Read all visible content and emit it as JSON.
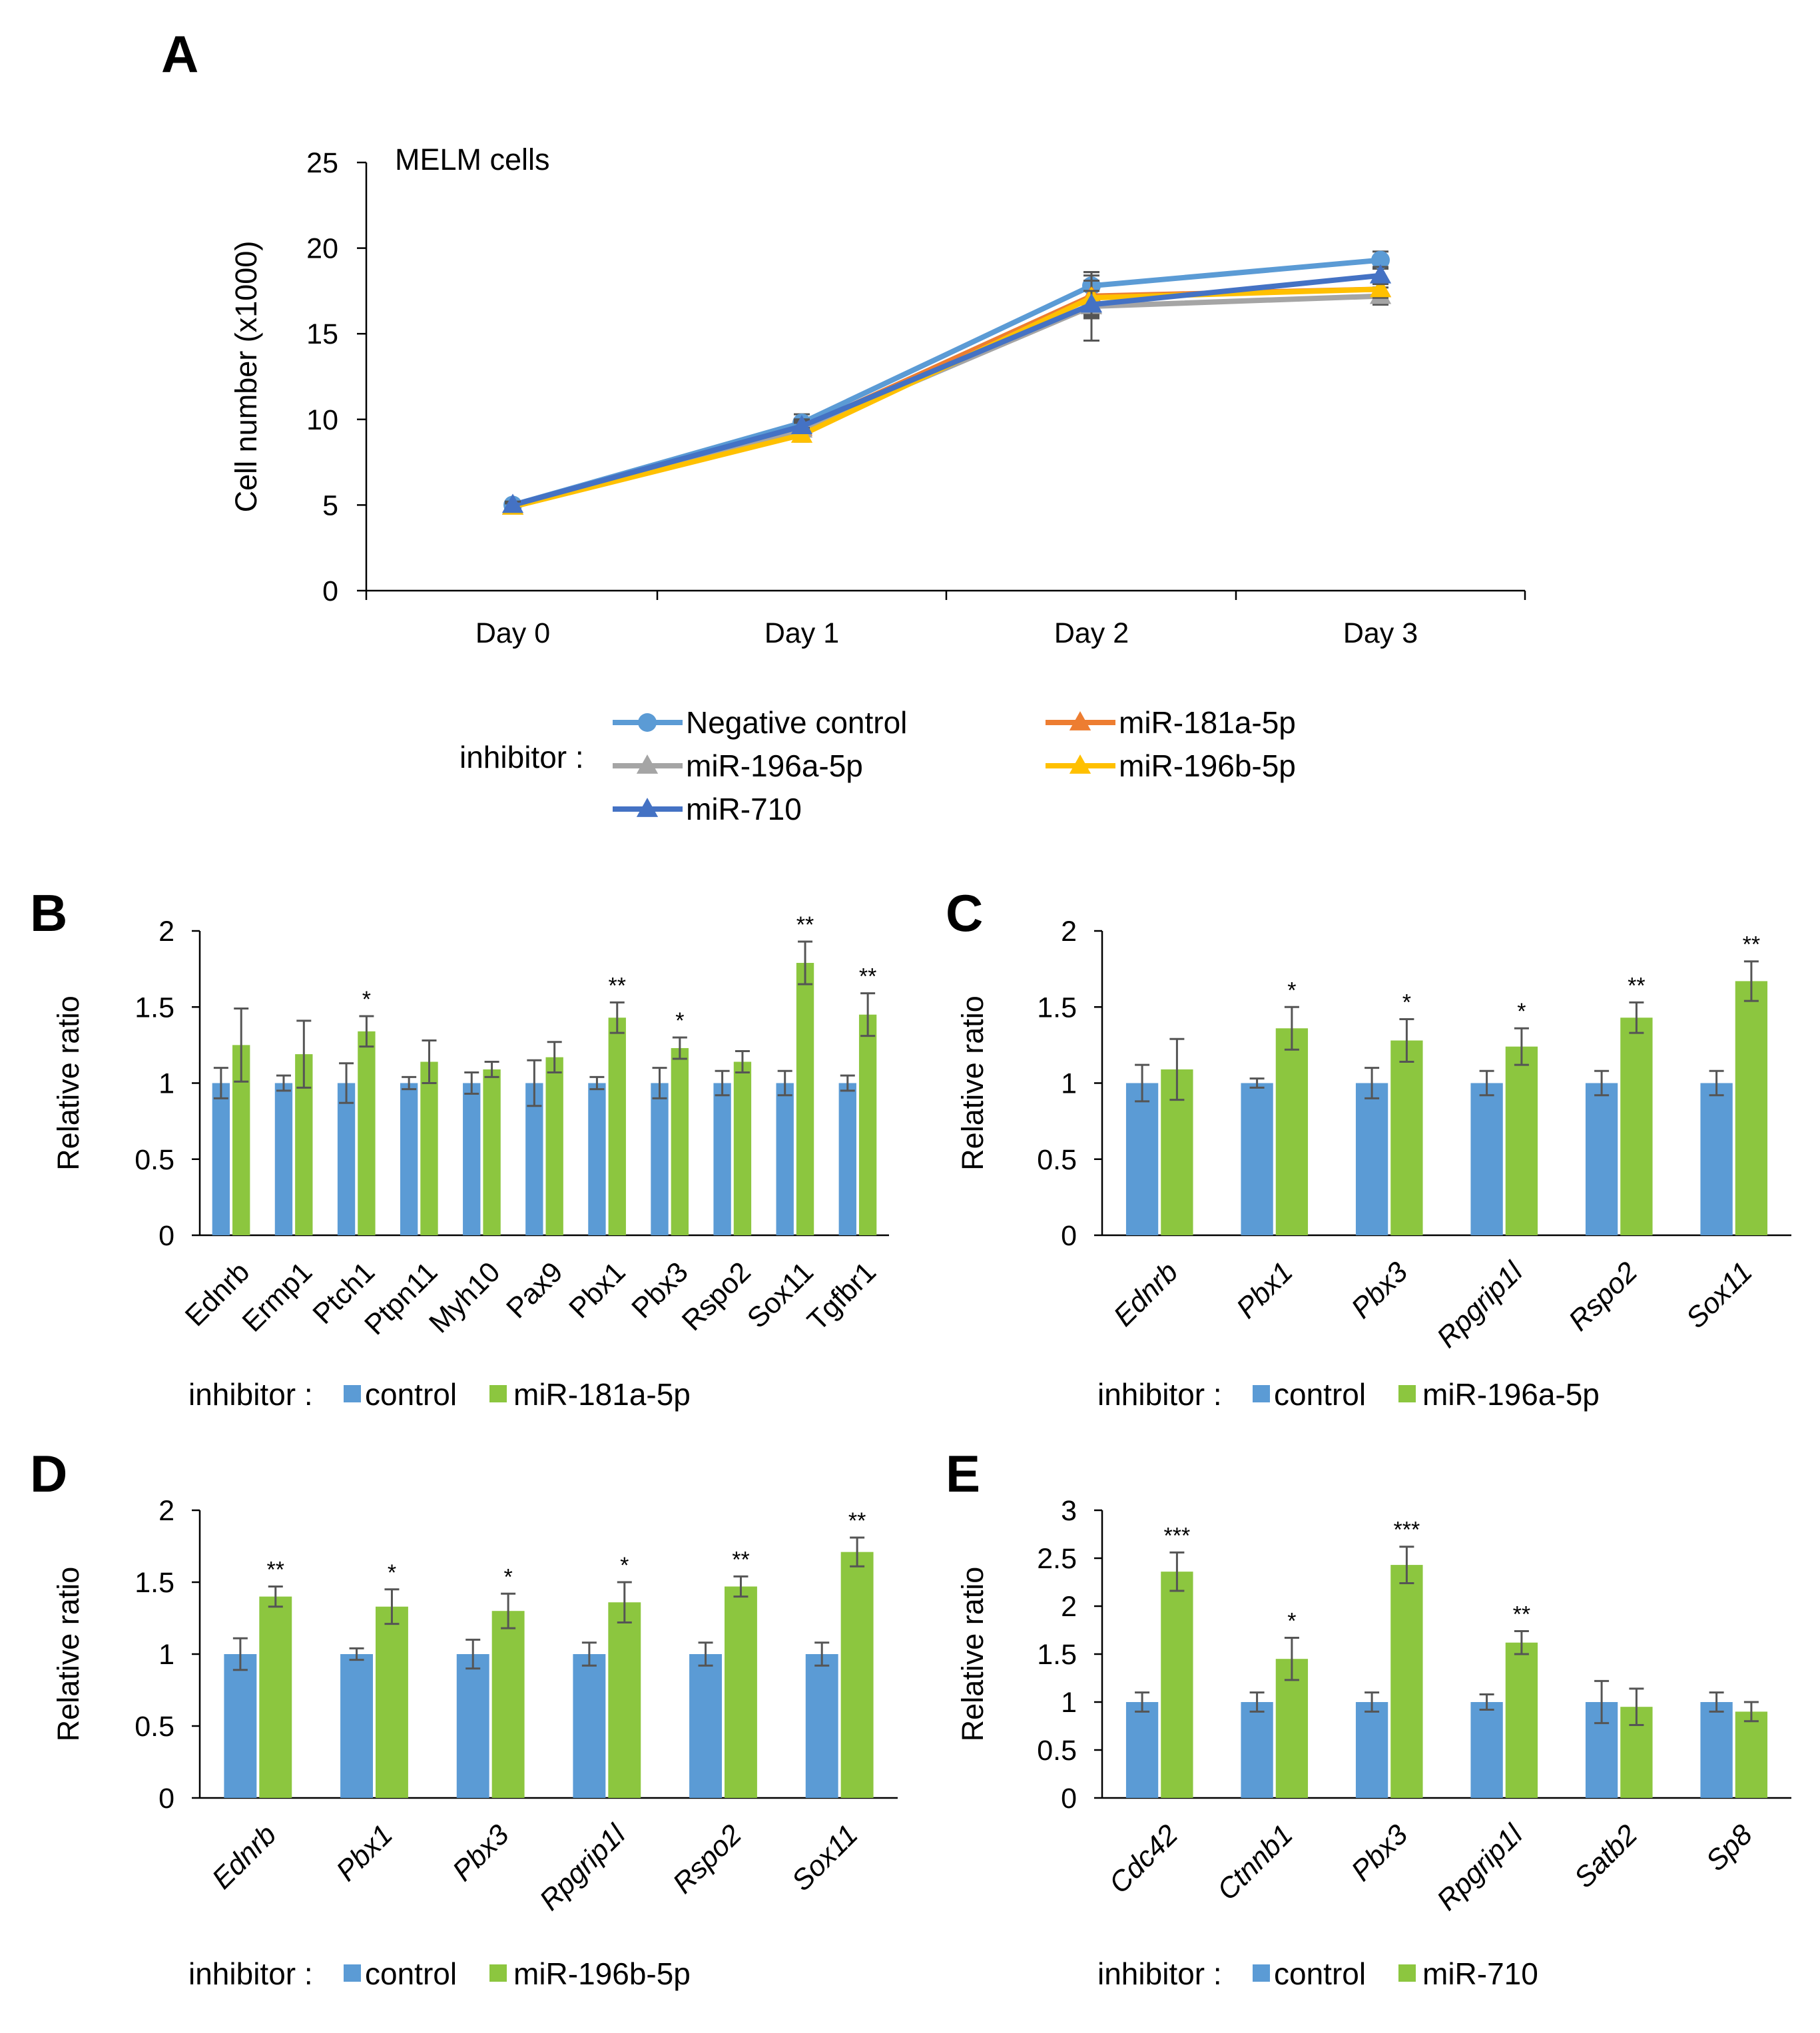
{
  "colors": {
    "negative_control": "#5B9BD5",
    "miR_181a_5p": "#ED7D31",
    "miR_196a_5p": "#A5A5A5",
    "miR_196b_5p": "#FFC000",
    "miR_710": "#4472C4",
    "bar_control": "#5B9BD5",
    "bar_mirna": "#8CC63F"
  },
  "chart_data": [
    {
      "panel": "A",
      "type": "line",
      "title": "MELM cells",
      "xlabel": "",
      "ylabel": "Cell number (x1000)",
      "categories": [
        "Day 0",
        "Day 1",
        "Day 2",
        "Day 3"
      ],
      "ylim": [
        0,
        25
      ],
      "yticks": [
        0,
        5,
        10,
        15,
        20,
        25
      ],
      "legend_prefix": "inhibitor :",
      "series": [
        {
          "name": "Negative control",
          "color": "#5B9BD5",
          "marker": "circle",
          "values": [
            5.0,
            9.8,
            17.8,
            19.3
          ],
          "errors": [
            0.2,
            0.5,
            0.8,
            0.5
          ]
        },
        {
          "name": "miR-181a-5p",
          "color": "#ED7D31",
          "marker": "triangle",
          "values": [
            4.9,
            9.5,
            17.2,
            17.6
          ],
          "errors": [
            0.2,
            0.4,
            1.2,
            0.5
          ]
        },
        {
          "name": "miR-196a-5p",
          "color": "#A5A5A5",
          "marker": "triangle",
          "values": [
            4.9,
            9.4,
            16.6,
            17.2
          ],
          "errors": [
            0.2,
            0.4,
            2.0,
            0.5
          ]
        },
        {
          "name": "miR-196b-5p",
          "color": "#FFC000",
          "marker": "triangle",
          "values": [
            4.9,
            9.1,
            17.1,
            17.6
          ],
          "errors": [
            0.2,
            0.4,
            1.0,
            0.5
          ]
        },
        {
          "name": "miR-710",
          "color": "#4472C4",
          "marker": "triangle",
          "values": [
            5.0,
            9.6,
            16.7,
            18.4
          ],
          "errors": [
            0.2,
            0.4,
            0.8,
            0.5
          ]
        }
      ]
    },
    {
      "panel": "B",
      "type": "bar",
      "ylabel": "Relative ratio",
      "ylim": [
        0,
        2
      ],
      "yticks": [
        "0",
        "0.5",
        "1",
        "1.5",
        "2"
      ],
      "italic": false,
      "categories": [
        "Ednrb",
        "Ermp1",
        "Ptch1",
        "Ptpn11",
        "Myh10",
        "Pax9",
        "Pbx1",
        "Pbx3",
        "Rspo2",
        "Sox11",
        "Tgfbr1"
      ],
      "legend_prefix": "inhibitor :",
      "series": [
        {
          "name": "control",
          "values": [
            1,
            1,
            1,
            1,
            1,
            1,
            1,
            1,
            1,
            1,
            1
          ],
          "errors": [
            0.1,
            0.05,
            0.13,
            0.04,
            0.07,
            0.15,
            0.04,
            0.1,
            0.08,
            0.08,
            0.05
          ]
        },
        {
          "name": "miR-181a-5p",
          "values": [
            1.25,
            1.19,
            1.34,
            1.14,
            1.09,
            1.17,
            1.43,
            1.23,
            1.14,
            1.79,
            1.45
          ],
          "errors": [
            0.24,
            0.22,
            0.1,
            0.14,
            0.05,
            0.1,
            0.1,
            0.07,
            0.07,
            0.14,
            0.14
          ]
        }
      ],
      "significance": [
        "",
        "",
        "*",
        "",
        "",
        "",
        "**",
        "*",
        "",
        "**",
        "**"
      ]
    },
    {
      "panel": "C",
      "type": "bar",
      "ylabel": "Relative ratio",
      "ylim": [
        0,
        2
      ],
      "yticks": [
        "0",
        "0.5",
        "1",
        "1.5",
        "2"
      ],
      "italic": true,
      "categories": [
        "Ednrb",
        "Pbx1",
        "Pbx3",
        "Rpgrip1l",
        "Rspo2",
        "Sox11"
      ],
      "legend_prefix": "inhibitor :",
      "series": [
        {
          "name": "control",
          "values": [
            1,
            1,
            1,
            1,
            1,
            1
          ],
          "errors": [
            0.12,
            0.03,
            0.1,
            0.08,
            0.08,
            0.08
          ]
        },
        {
          "name": "miR-196a-5p",
          "values": [
            1.09,
            1.36,
            1.28,
            1.24,
            1.43,
            1.67
          ],
          "errors": [
            0.2,
            0.14,
            0.14,
            0.12,
            0.1,
            0.13
          ]
        }
      ],
      "significance": [
        "",
        "*",
        "*",
        "*",
        "**",
        "**"
      ]
    },
    {
      "panel": "D",
      "type": "bar",
      "ylabel": "Relative ratio",
      "ylim": [
        0,
        2
      ],
      "yticks": [
        "0",
        "0.5",
        "1",
        "1.5",
        "2"
      ],
      "italic": true,
      "categories": [
        "Ednrb",
        "Pbx1",
        "Pbx3",
        "Rpgrip1l",
        "Rspo2",
        "Sox11"
      ],
      "legend_prefix": "inhibitor :",
      "series": [
        {
          "name": "control",
          "values": [
            1,
            1,
            1,
            1,
            1,
            1
          ],
          "errors": [
            0.11,
            0.04,
            0.1,
            0.08,
            0.08,
            0.08
          ]
        },
        {
          "name": "miR-196b-5p",
          "values": [
            1.4,
            1.33,
            1.3,
            1.36,
            1.47,
            1.71
          ],
          "errors": [
            0.07,
            0.12,
            0.12,
            0.14,
            0.07,
            0.1
          ]
        }
      ],
      "significance": [
        "**",
        "*",
        "*",
        "*",
        "**",
        "**"
      ]
    },
    {
      "panel": "E",
      "type": "bar",
      "ylabel": "Relative ratio",
      "ylim": [
        0,
        3
      ],
      "yticks": [
        "0",
        "0.5",
        "1",
        "1.5",
        "2",
        "2.5",
        "3"
      ],
      "italic": true,
      "categories": [
        "Cdc42",
        "Ctnnb1",
        "Pbx3",
        "Rpgrip1l",
        "Satb2",
        "Sp8"
      ],
      "legend_prefix": "inhibitor :",
      "series": [
        {
          "name": "control",
          "values": [
            1,
            1,
            1,
            1,
            1,
            1
          ],
          "errors": [
            0.1,
            0.1,
            0.1,
            0.08,
            0.22,
            0.1
          ]
        },
        {
          "name": "miR-710",
          "values": [
            2.36,
            1.45,
            2.43,
            1.62,
            0.95,
            0.9
          ],
          "errors": [
            0.2,
            0.22,
            0.19,
            0.12,
            0.19,
            0.1
          ]
        }
      ],
      "significance": [
        "***",
        "*",
        "***",
        "**",
        "",
        ""
      ]
    }
  ]
}
